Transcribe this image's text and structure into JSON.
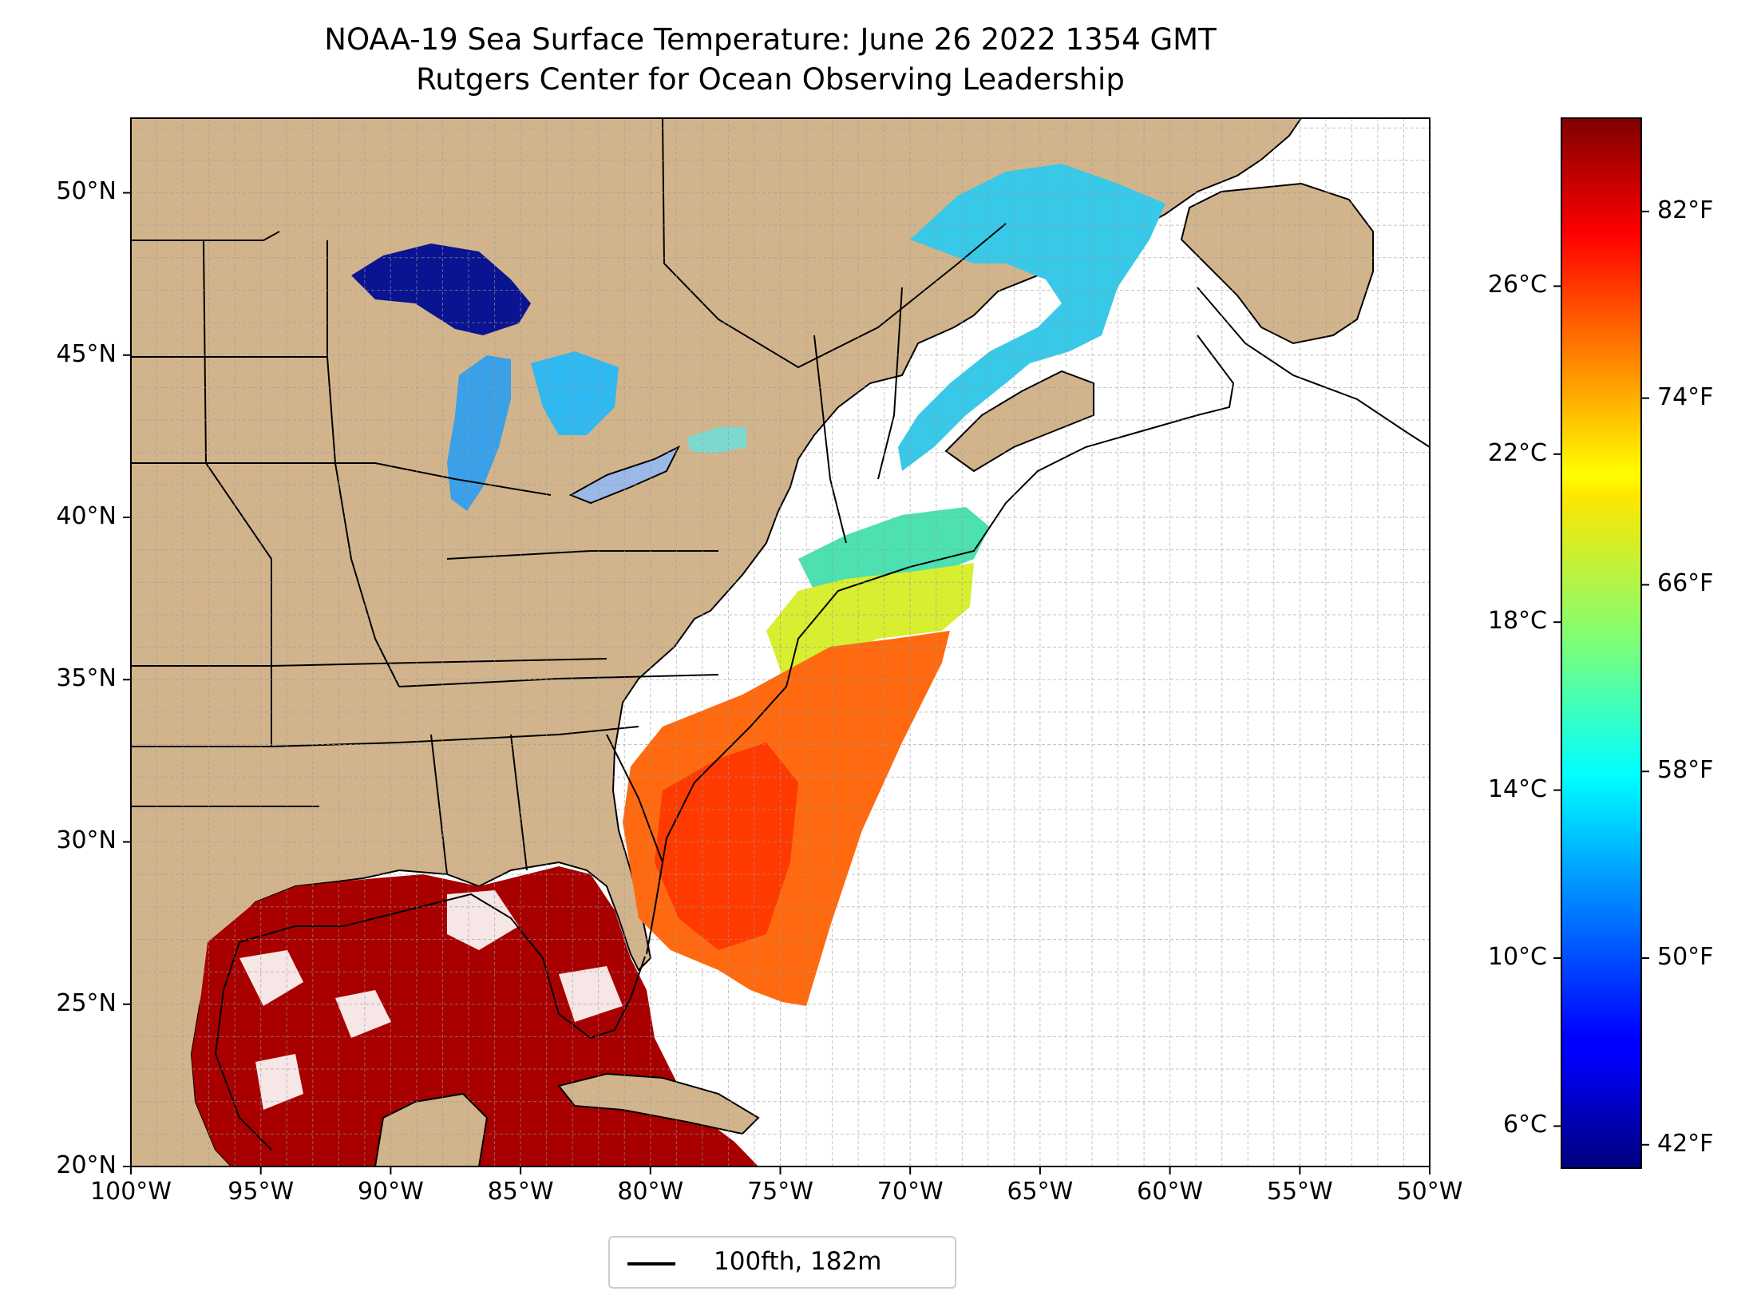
{
  "title": "NOAA-19 Sea Surface Temperature: June 26 2022 1354 GMT",
  "subtitle": "Rutgers Center for Ocean Observing Leadership",
  "map": {
    "extent": {
      "lon": [
        -100,
        -50
      ],
      "lat": [
        20,
        52.3
      ]
    },
    "lat_ticks": [
      {
        "value": 50,
        "label": "50°N"
      },
      {
        "value": 45,
        "label": "45°N"
      },
      {
        "value": 40,
        "label": "40°N"
      },
      {
        "value": 35,
        "label": "35°N"
      },
      {
        "value": 30,
        "label": "30°N"
      },
      {
        "value": 25,
        "label": "25°N"
      },
      {
        "value": 20,
        "label": "20°N"
      }
    ],
    "lon_ticks": [
      {
        "value": -100,
        "label": "100°W"
      },
      {
        "value": -95,
        "label": "95°W"
      },
      {
        "value": -90,
        "label": "90°W"
      },
      {
        "value": -85,
        "label": "85°W"
      },
      {
        "value": -80,
        "label": "80°W"
      },
      {
        "value": -75,
        "label": "75°W"
      },
      {
        "value": -70,
        "label": "70°W"
      },
      {
        "value": -65,
        "label": "65°W"
      },
      {
        "value": -60,
        "label": "60°W"
      },
      {
        "value": -55,
        "label": "55°W"
      },
      {
        "value": -50,
        "label": "50°W"
      }
    ],
    "gridlines": "dashed grey every 1 degree",
    "land_color": "#d2b48c",
    "lake_color": "#9ab8e8",
    "colormap": "jet"
  },
  "colorbar": {
    "range_c": [
      5,
      30
    ],
    "celsius_ticks": [
      {
        "value": 6,
        "label": "6°C"
      },
      {
        "value": 10,
        "label": "10°C"
      },
      {
        "value": 14,
        "label": "14°C"
      },
      {
        "value": 18,
        "label": "18°C"
      },
      {
        "value": 22,
        "label": "22°C"
      },
      {
        "value": 26,
        "label": "26°C"
      }
    ],
    "fahrenheit_ticks": [
      {
        "value": 42,
        "label": "42°F"
      },
      {
        "value": 50,
        "label": "50°F"
      },
      {
        "value": 58,
        "label": "58°F"
      },
      {
        "value": 66,
        "label": "66°F"
      },
      {
        "value": 74,
        "label": "74°F"
      },
      {
        "value": 82,
        "label": "82°F"
      }
    ]
  },
  "legend": {
    "label": "100fth, 182m"
  }
}
